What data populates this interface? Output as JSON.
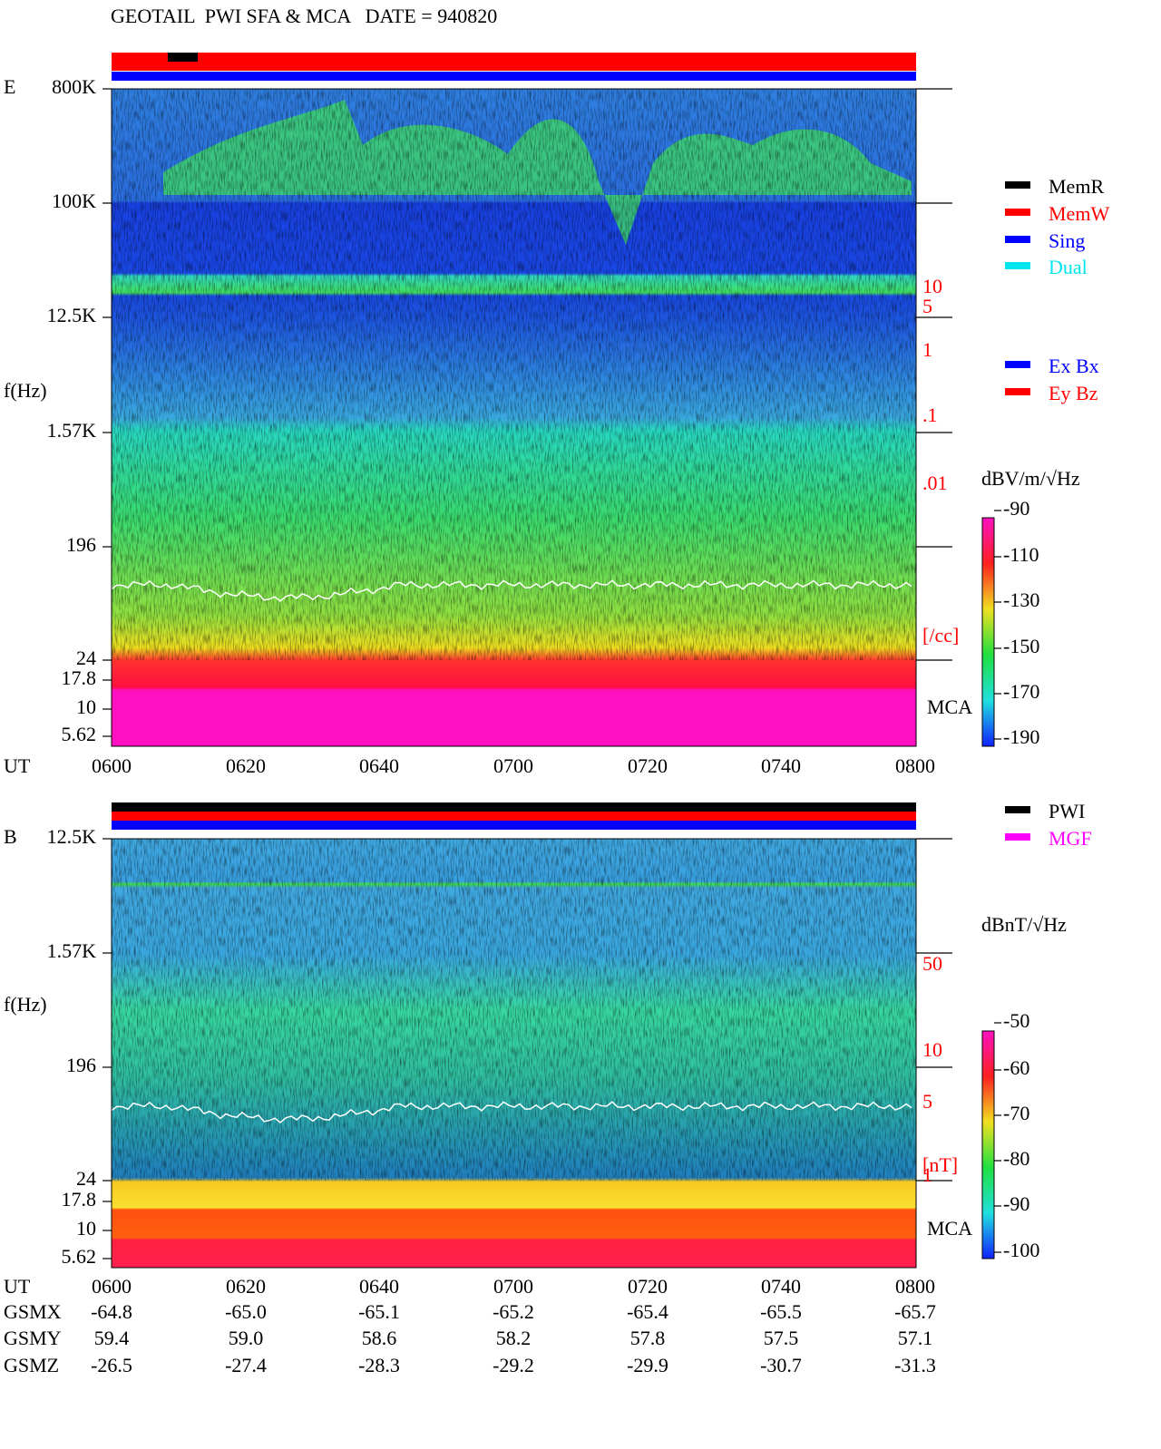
{
  "header": {
    "title": "GEOTAIL  PWI SFA & MCA   DATE = 940820"
  },
  "panels": [
    {
      "label": "E",
      "y_axis_label": "f(Hz)",
      "y_ticks": [
        "800K",
        "100K",
        "12.5K",
        "1.57K",
        "196",
        "24",
        "17.8",
        "10",
        "5.62"
      ],
      "right_scale": [
        "10",
        "5",
        "1",
        ".1",
        ".01",
        "[/cc]"
      ],
      "mca_label": "MCA",
      "legend": [
        {
          "name": "MemR",
          "color": "#000000"
        },
        {
          "name": "MemW",
          "color": "#ff0000"
        },
        {
          "name": "Sing",
          "color": "#0000ff"
        },
        {
          "name": "Dual",
          "color": "#00e5ee"
        }
      ],
      "legend_components": [
        {
          "name": "Ex Bx",
          "color": "#0000ff"
        },
        {
          "name": "Ey Bz",
          "color": "#ff0000"
        }
      ],
      "colorbar_title": "dBV/m/√Hz",
      "colorbar_ticks": [
        "-90",
        "-110",
        "-130",
        "-150",
        "-170",
        "-190"
      ],
      "x_axis_label": "UT",
      "x_ticks": [
        "0600",
        "0620",
        "0640",
        "0700",
        "0720",
        "0740",
        "0800"
      ]
    },
    {
      "label": "B",
      "y_axis_label": "f(Hz)",
      "y_ticks": [
        "12.5K",
        "1.57K",
        "196",
        "24",
        "17.8",
        "10",
        "5.62"
      ],
      "right_scale": [
        "50",
        "10",
        "5",
        "1",
        "[nT]"
      ],
      "mca_label": "MCA",
      "legend": [
        {
          "name": "PWI",
          "color": "#000000"
        },
        {
          "name": "MGF",
          "color": "#ff00ff"
        }
      ],
      "colorbar_title": "dBnT/√Hz",
      "colorbar_ticks": [
        "-50",
        "-60",
        "-70",
        "-80",
        "-90",
        "-100"
      ],
      "x_axis_label": "UT",
      "x_ticks": [
        "0600",
        "0620",
        "0640",
        "0700",
        "0720",
        "0740",
        "0800"
      ]
    }
  ],
  "orbit": {
    "rows": [
      {
        "label": "GSMX",
        "values": [
          "-64.8",
          "-65.0",
          "-65.1",
          "-65.2",
          "-65.4",
          "-65.5",
          "-65.7"
        ]
      },
      {
        "label": "GSMY",
        "values": [
          "59.4",
          "59.0",
          "58.6",
          "58.2",
          "57.8",
          "57.5",
          "57.1"
        ]
      },
      {
        "label": "GSMZ",
        "values": [
          "-26.5",
          "-27.4",
          "-28.3",
          "-29.2",
          "-29.9",
          "-30.7",
          "-31.3"
        ]
      }
    ]
  }
}
